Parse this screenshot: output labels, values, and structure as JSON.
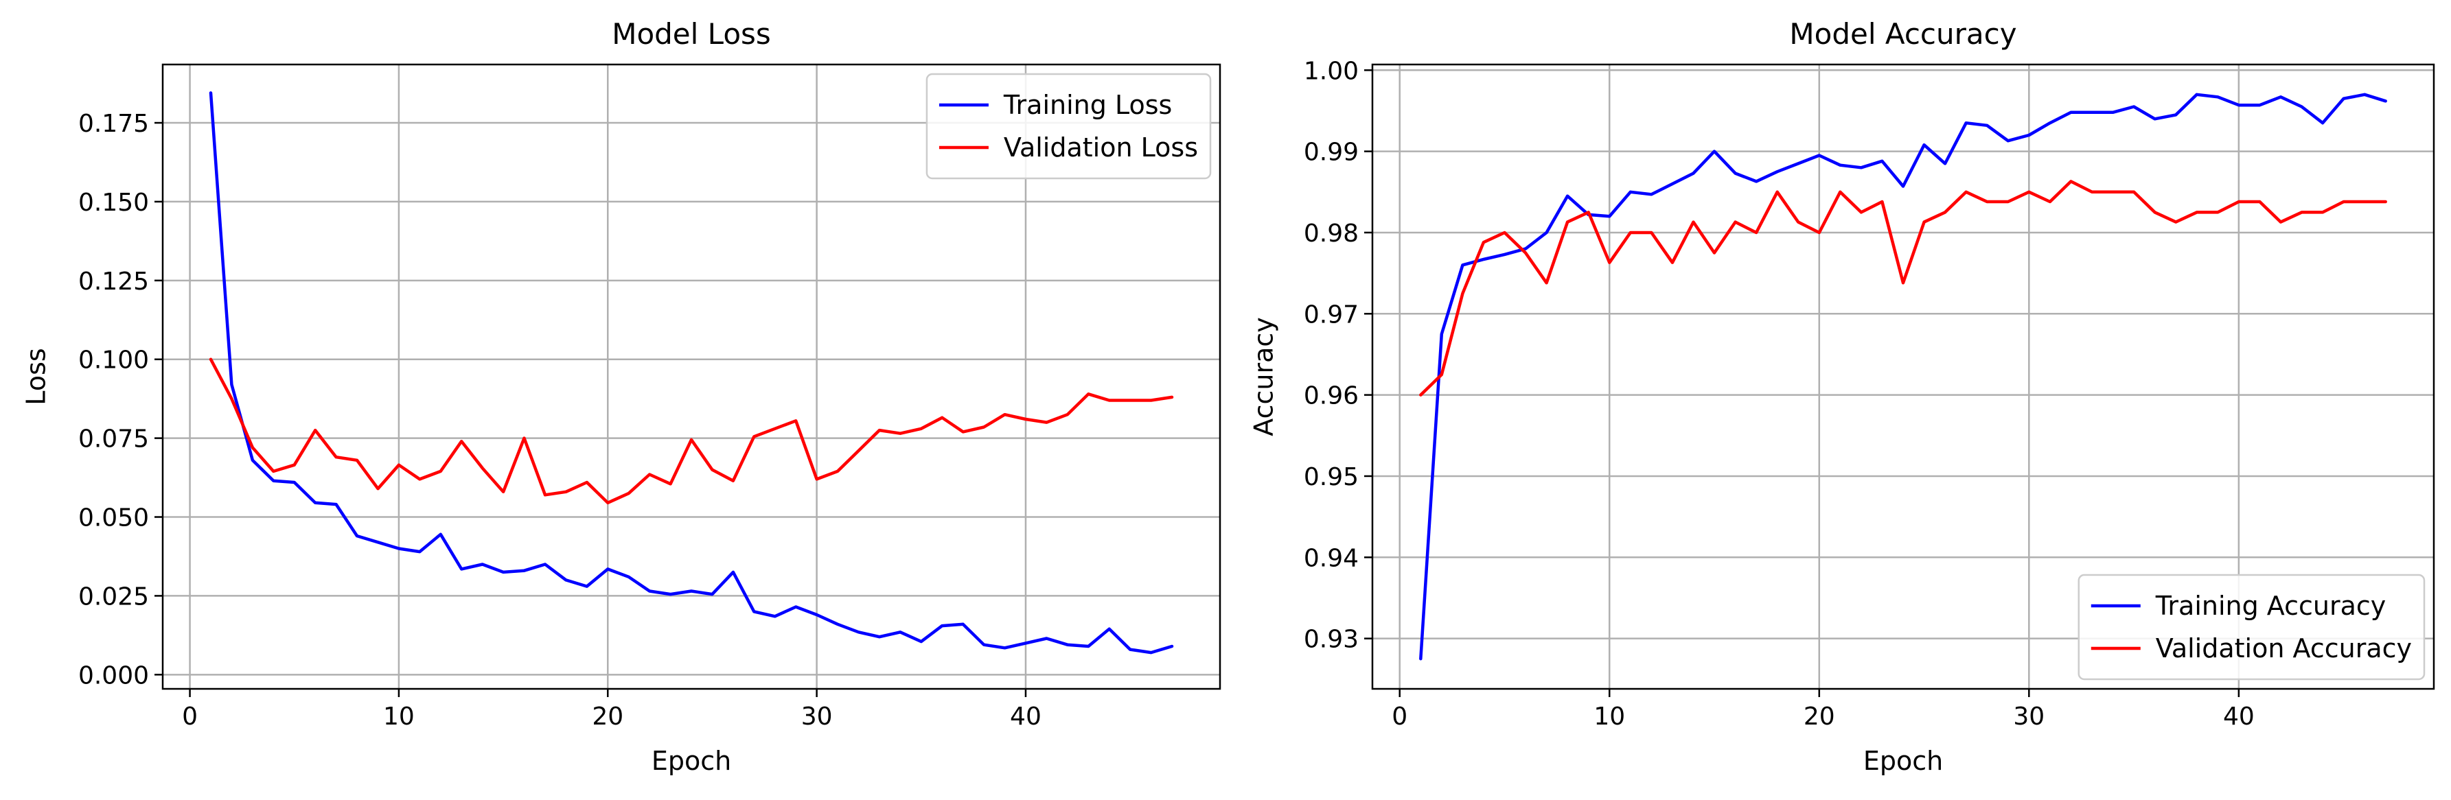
{
  "chart_data": [
    {
      "type": "line",
      "title": "Model Loss",
      "xlabel": "Epoch",
      "ylabel": "Loss",
      "xlim": [
        -1.3,
        49.3
      ],
      "ylim": [
        -0.0045,
        0.1935
      ],
      "xticks": [
        0,
        10,
        20,
        30,
        40
      ],
      "yticks": [
        0.0,
        0.025,
        0.05,
        0.075,
        0.1,
        0.125,
        0.15,
        0.175
      ],
      "ytick_decimals": 3,
      "grid": true,
      "legend_position": "upper right",
      "x": [
        1,
        2,
        3,
        4,
        5,
        6,
        7,
        8,
        9,
        10,
        11,
        12,
        13,
        14,
        15,
        16,
        17,
        18,
        19,
        20,
        21,
        22,
        23,
        24,
        25,
        26,
        27,
        28,
        29,
        30,
        31,
        32,
        33,
        34,
        35,
        36,
        37,
        38,
        39,
        40,
        41,
        42,
        43,
        44,
        45,
        46,
        47
      ],
      "series": [
        {
          "name": "Training Loss",
          "color": "#0000ff",
          "values": [
            0.1845,
            0.092,
            0.068,
            0.0615,
            0.061,
            0.0545,
            0.054,
            0.044,
            0.042,
            0.04,
            0.039,
            0.0445,
            0.0335,
            0.035,
            0.0325,
            0.033,
            0.035,
            0.03,
            0.028,
            0.0335,
            0.031,
            0.0265,
            0.0255,
            0.0265,
            0.0255,
            0.0325,
            0.02,
            0.0185,
            0.0215,
            0.019,
            0.016,
            0.0135,
            0.012,
            0.0135,
            0.0105,
            0.0155,
            0.016,
            0.0095,
            0.0085,
            0.01,
            0.0115,
            0.0095,
            0.009,
            0.0145,
            0.008,
            0.007,
            0.009
          ]
        },
        {
          "name": "Validation Loss",
          "color": "#ff0000",
          "values": [
            0.1,
            0.0875,
            0.072,
            0.0645,
            0.0665,
            0.0775,
            0.069,
            0.068,
            0.059,
            0.0665,
            0.062,
            0.0645,
            0.074,
            0.0655,
            0.058,
            0.075,
            0.057,
            0.058,
            0.061,
            0.0545,
            0.0575,
            0.0635,
            0.0605,
            0.0745,
            0.065,
            0.0615,
            0.0755,
            0.078,
            0.0805,
            0.062,
            0.0645,
            0.071,
            0.0775,
            0.0765,
            0.078,
            0.0815,
            0.077,
            0.0785,
            0.0825,
            0.081,
            0.08,
            0.0825,
            0.089,
            0.087,
            0.087,
            0.087,
            0.088
          ]
        }
      ]
    },
    {
      "type": "line",
      "title": "Model Accuracy",
      "xlabel": "Epoch",
      "ylabel": "Accuracy",
      "xlim": [
        -1.3,
        49.3
      ],
      "ylim": [
        0.9238,
        1.0007
      ],
      "xticks": [
        0,
        10,
        20,
        30,
        40
      ],
      "yticks": [
        0.93,
        0.94,
        0.95,
        0.96,
        0.97,
        0.98,
        0.99,
        1.0
      ],
      "ytick_decimals": 2,
      "grid": true,
      "legend_position": "lower right",
      "x": [
        1,
        2,
        3,
        4,
        5,
        6,
        7,
        8,
        9,
        10,
        11,
        12,
        13,
        14,
        15,
        16,
        17,
        18,
        19,
        20,
        21,
        22,
        23,
        24,
        25,
        26,
        27,
        28,
        29,
        30,
        31,
        32,
        33,
        34,
        35,
        36,
        37,
        38,
        39,
        40,
        41,
        42,
        43,
        44,
        45,
        46,
        47
      ],
      "series": [
        {
          "name": "Training Accuracy",
          "color": "#0000ff",
          "values": [
            0.9275,
            0.9675,
            0.976,
            0.9767,
            0.9773,
            0.978,
            0.98,
            0.9845,
            0.9822,
            0.982,
            0.985,
            0.9847,
            0.986,
            0.9873,
            0.99,
            0.9873,
            0.9863,
            0.9875,
            0.9885,
            0.9895,
            0.9883,
            0.988,
            0.9888,
            0.9857,
            0.9908,
            0.9885,
            0.9935,
            0.9932,
            0.9913,
            0.992,
            0.9935,
            0.9948,
            0.9948,
            0.9948,
            0.9955,
            0.994,
            0.9945,
            0.997,
            0.9967,
            0.9957,
            0.9957,
            0.9967,
            0.9955,
            0.9935,
            0.9965,
            0.997,
            0.9962
          ]
        },
        {
          "name": "Validation Accuracy",
          "color": "#ff0000",
          "values": [
            0.96,
            0.9625,
            0.9725,
            0.9788,
            0.98,
            0.9775,
            0.9738,
            0.9813,
            0.9825,
            0.9763,
            0.98,
            0.98,
            0.9763,
            0.9813,
            0.9775,
            0.9813,
            0.98,
            0.985,
            0.9813,
            0.98,
            0.985,
            0.9825,
            0.9838,
            0.9738,
            0.9813,
            0.9825,
            0.985,
            0.9838,
            0.9838,
            0.985,
            0.9838,
            0.9863,
            0.985,
            0.985,
            0.985,
            0.9825,
            0.9813,
            0.9825,
            0.9825,
            0.9838,
            0.9838,
            0.9813,
            0.9825,
            0.9825,
            0.9838,
            0.9838,
            0.9838
          ]
        }
      ]
    }
  ]
}
